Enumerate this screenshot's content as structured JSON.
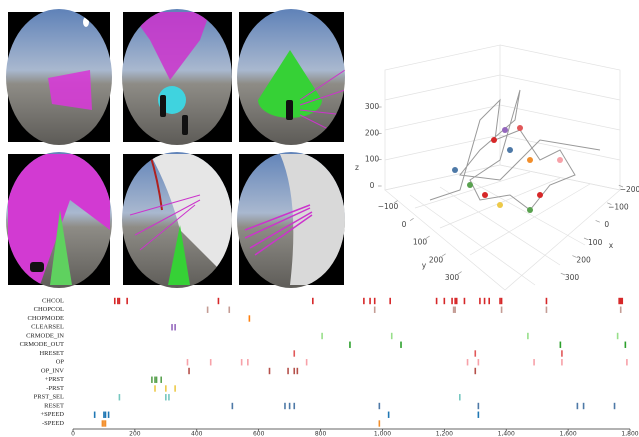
{
  "chart_data": [
    {
      "type": "scatter3d",
      "xlabel": "x",
      "ylabel": "y",
      "zlabel": "z",
      "xlim": [
        -200,
        300
      ],
      "xticks": [
        {
          "value": -200,
          "label": "−200"
        },
        {
          "value": -100,
          "label": "−100"
        },
        0,
        100,
        200,
        300
      ],
      "ylim": [
        -100,
        300
      ],
      "yticks": [
        {
          "value": -100,
          "label": "−100"
        },
        0,
        100,
        200,
        300
      ],
      "zlim": [
        0,
        300
      ],
      "zticks": [
        0,
        100,
        200,
        300
      ]
    },
    {
      "type": "event",
      "xlim": [
        0,
        1800
      ],
      "xticks": [
        0,
        200,
        400,
        600,
        800,
        {
          "value": 1000,
          "label": "1,000"
        },
        {
          "value": 1200,
          "label": "1,200"
        },
        {
          "value": 1400,
          "label": "1,400"
        },
        {
          "value": 1600,
          "label": "1,600"
        },
        {
          "value": 1800,
          "label": "1,800"
        }
      ],
      "series": [
        {
          "name": "CHCOL",
          "color": "#d62728",
          "values": [
            135,
            145,
            150,
            175,
            470,
            775,
            940,
            960,
            975,
            1025,
            1175,
            1200,
            1225,
            1235,
            1240,
            1265,
            1315,
            1330,
            1345,
            1380,
            1385,
            1530,
            1765,
            1770,
            1775
          ]
        },
        {
          "name": "CHOPCOL",
          "color": "#c49c94",
          "values": [
            435,
            505,
            975,
            1230,
            1235,
            1385,
            1530,
            1770
          ]
        },
        {
          "name": "CHOPMODE",
          "color": "#ff7f0e",
          "values": [
            570
          ]
        },
        {
          "name": "CLEARSEL",
          "color": "#9467bd",
          "values": [
            320,
            330
          ]
        },
        {
          "name": "CRMODE_IN",
          "color": "#98df8a",
          "values": [
            805,
            1030,
            1470,
            1760
          ]
        },
        {
          "name": "CRMODE_OUT",
          "color": "#2ca02c",
          "values": [
            895,
            1060,
            1575,
            1785
          ]
        },
        {
          "name": "HRESET",
          "color": "#e15759",
          "values": [
            715,
            1300,
            1580
          ]
        },
        {
          "name": "OP",
          "color": "#f7a1a8",
          "values": [
            370,
            445,
            545,
            565,
            755,
            1275,
            1310,
            1490,
            1580,
            1790
          ]
        },
        {
          "name": "OP_INV",
          "color": "#b5504a",
          "values": [
            375,
            635,
            695,
            715,
            725,
            1300
          ]
        },
        {
          "name": "+PRST",
          "color": "#59a14f",
          "values": [
            255,
            265,
            270,
            285
          ]
        },
        {
          "name": "-PRST",
          "color": "#edc948",
          "values": [
            265,
            300,
            330
          ]
        },
        {
          "name": "PRST_SEL",
          "color": "#76c7c0",
          "values": [
            150,
            300,
            310,
            1250
          ]
        },
        {
          "name": "RESET",
          "color": "#4e79a7",
          "values": [
            515,
            685,
            700,
            715,
            990,
            1310,
            1630,
            1650,
            1750
          ]
        },
        {
          "name": "+SPEED",
          "color": "#1f77b4",
          "values": [
            70,
            100,
            105,
            115,
            1020,
            1310
          ]
        },
        {
          "name": "-SPEED",
          "color": "#f28e2b",
          "values": [
            95,
            100,
            105,
            990
          ]
        }
      ]
    }
  ]
}
